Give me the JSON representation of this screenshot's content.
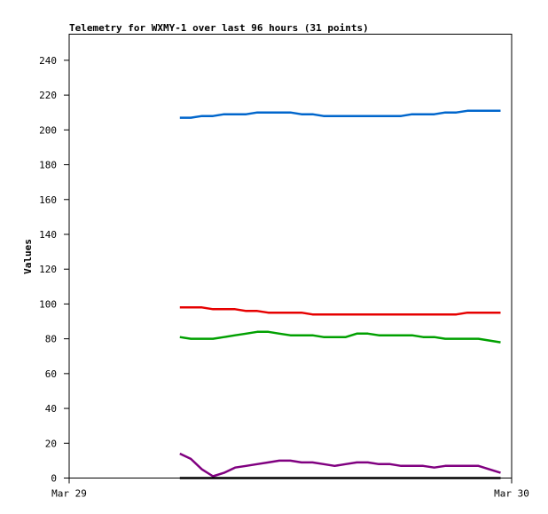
{
  "chart_data": {
    "type": "line",
    "title": "Telemetry for WXMY-1 over last 96 hours (31 points)",
    "xlabel": "",
    "ylabel": "Values",
    "x_tick_labels": [
      "Mar 29",
      "Mar 30"
    ],
    "x_range_hours": [
      0,
      24
    ],
    "ylim": [
      0,
      255
    ],
    "y_ticks": [
      0,
      20,
      40,
      60,
      80,
      100,
      120,
      140,
      160,
      180,
      200,
      220,
      240
    ],
    "grid": false,
    "x_hours": [
      6.0,
      6.6,
      7.2,
      7.8,
      8.4,
      9.0,
      9.6,
      10.2,
      10.8,
      11.4,
      12.0,
      12.6,
      13.2,
      13.8,
      14.4,
      15.0,
      15.6,
      16.2,
      16.8,
      17.4,
      18.0,
      18.6,
      19.2,
      19.8,
      20.4,
      21.0,
      21.6,
      22.2
    ],
    "series": [
      {
        "color": "#0066cc",
        "values": [
          207,
          207,
          208,
          208,
          209,
          209,
          209,
          210,
          210,
          210,
          210,
          209,
          209,
          208,
          208,
          208,
          208,
          208,
          208,
          208,
          208,
          209,
          209,
          209,
          210,
          210,
          211,
          211
        ]
      },
      {
        "color": "#e60000",
        "values": [
          98,
          98,
          98,
          97,
          97,
          97,
          96,
          96,
          95,
          95,
          95,
          95,
          94,
          94,
          94,
          94,
          94,
          94,
          94,
          94,
          94,
          94,
          94,
          94,
          94,
          94,
          95,
          95
        ]
      },
      {
        "color": "#00a000",
        "values": [
          81,
          80,
          80,
          80,
          81,
          82,
          83,
          84,
          84,
          83,
          82,
          82,
          82,
          81,
          81,
          81,
          83,
          83,
          82,
          82,
          82,
          82,
          81,
          81,
          80,
          80,
          80,
          80
        ]
      },
      {
        "color": "#800080",
        "values": [
          14,
          11,
          5,
          1,
          3,
          6,
          7,
          8,
          9,
          10,
          10,
          9,
          9,
          8,
          7,
          8,
          9,
          9,
          8,
          8,
          7,
          7,
          7,
          6,
          7,
          7,
          7,
          7
        ]
      },
      {
        "color": "#000000",
        "values": [
          0,
          0,
          0,
          0,
          0,
          0,
          0,
          0,
          0,
          0,
          0,
          0,
          0,
          0,
          0,
          0,
          0,
          0,
          0,
          0,
          0,
          0,
          0,
          0,
          0,
          0,
          0,
          0
        ]
      }
    ],
    "series_tail": [
      {
        "x_hours": [
          22.8,
          23.4
        ],
        "values": [
          211,
          211
        ]
      },
      {
        "x_hours": [
          22.8,
          23.4
        ],
        "values": [
          95,
          95
        ]
      },
      {
        "x_hours": [
          22.8,
          23.4
        ],
        "values": [
          79,
          78
        ]
      },
      {
        "x_hours": [
          22.8,
          23.4
        ],
        "values": [
          5,
          3
        ]
      },
      {
        "x_hours": [
          22.8,
          23.4
        ],
        "values": [
          0,
          0
        ]
      }
    ]
  }
}
